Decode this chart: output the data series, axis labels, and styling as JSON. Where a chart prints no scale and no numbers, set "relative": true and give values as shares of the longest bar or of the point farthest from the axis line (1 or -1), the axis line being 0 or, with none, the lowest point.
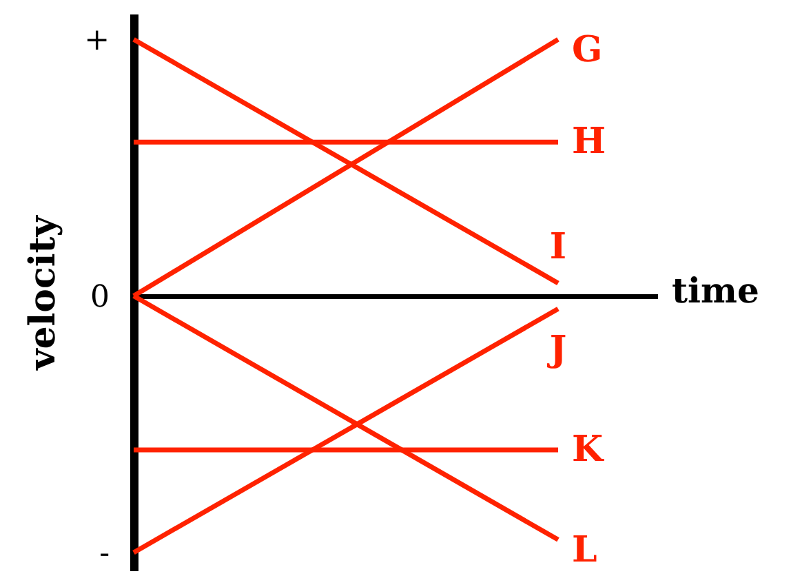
{
  "chart_data": {
    "type": "line",
    "relative": true,
    "xlabel": "time",
    "ylabel": "velocity",
    "annotations": [
      "+",
      "0",
      "-"
    ],
    "categories": [
      null,
      null
    ],
    "tick_labels": "y",
    "legend": false,
    "line_style": "solid",
    "series": [
      {
        "name": "G",
        "color": "#ff2200",
        "values": [
          0,
          1
        ]
      },
      {
        "name": "H",
        "color": "#ff2200",
        "values": [
          0.6,
          0.6
        ]
      },
      {
        "name": "I",
        "color": "#ff2200",
        "values": [
          1,
          0.05
        ]
      },
      {
        "name": "J",
        "color": "#ff2200",
        "values": [
          -1,
          -0.05
        ]
      },
      {
        "name": "K",
        "color": "#ff2200",
        "values": [
          -0.6,
          -0.6
        ]
      },
      {
        "name": "L",
        "color": "#ff2200",
        "values": [
          0,
          -0.95
        ]
      }
    ]
  }
}
